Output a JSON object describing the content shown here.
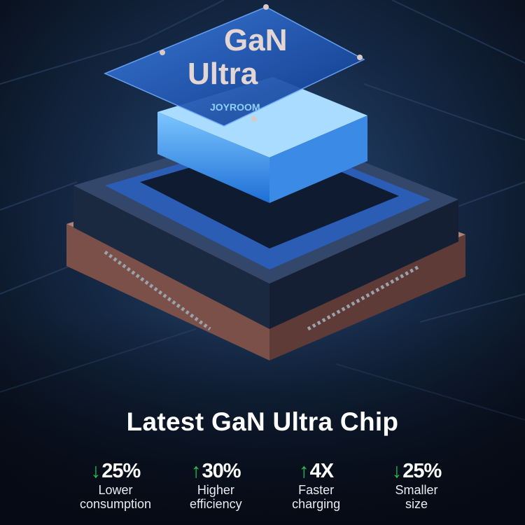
{
  "product": {
    "chip_label_line1": "GaN",
    "chip_label_line2": "Ultra",
    "brand_logo": "JOYROOM"
  },
  "headline": "Latest GaN Ultra Chip",
  "accent_color": "#1fc35a",
  "stats": [
    {
      "direction": "down",
      "arrow": "↓",
      "value": "25%",
      "label_line1": "Lower",
      "label_line2": "consumption"
    },
    {
      "direction": "up",
      "arrow": "↑",
      "value": "30%",
      "label_line1": "Higher",
      "label_line2": "efficiency"
    },
    {
      "direction": "up",
      "arrow": "↑",
      "value": "4X",
      "label_line1": "Faster",
      "label_line2": "charging"
    },
    {
      "direction": "down",
      "arrow": "↓",
      "value": "25%",
      "label_line1": "Smaller",
      "label_line2": "size"
    }
  ]
}
